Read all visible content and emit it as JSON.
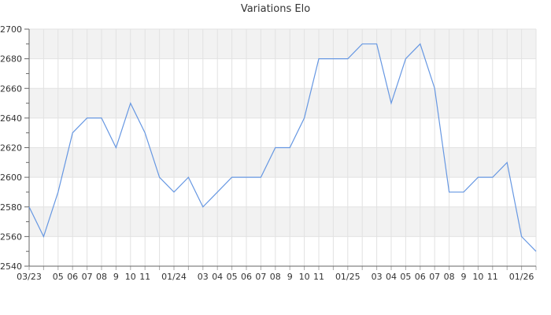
{
  "chart_data": {
    "type": "line",
    "title": "Variations Elo",
    "xlabel": "",
    "ylabel": "",
    "ylim": [
      2540,
      2700
    ],
    "y_tick_step": 20,
    "y_minor_tick_step": 10,
    "y_tick_labels": [
      "2540",
      "2560",
      "2580",
      "2600",
      "2620",
      "2640",
      "2660",
      "2680",
      "2700"
    ],
    "grid": true,
    "legend_position": "none",
    "colors": {
      "line": "#6697e2",
      "band": "#f2f2f2",
      "grid": "#e2e2e2",
      "axis": "#666666",
      "tick": "#aaaaaa",
      "text": "#333333",
      "title_text": "#333333"
    },
    "points": [
      {
        "x_label": "03/23",
        "value": 2580
      },
      {
        "x_label": "",
        "value": 2560
      },
      {
        "x_label": "05",
        "value": 2590
      },
      {
        "x_label": "06",
        "value": 2630
      },
      {
        "x_label": "07",
        "value": 2640
      },
      {
        "x_label": "08",
        "value": 2640
      },
      {
        "x_label": "9",
        "value": 2620
      },
      {
        "x_label": "10",
        "value": 2650
      },
      {
        "x_label": "11",
        "value": 2630
      },
      {
        "x_label": "",
        "value": 2600
      },
      {
        "x_label": "01/24",
        "value": 2590
      },
      {
        "x_label": "",
        "value": 2600
      },
      {
        "x_label": "03",
        "value": 2580
      },
      {
        "x_label": "04",
        "value": 2590
      },
      {
        "x_label": "05",
        "value": 2600
      },
      {
        "x_label": "06",
        "value": 2600
      },
      {
        "x_label": "07",
        "value": 2600
      },
      {
        "x_label": "08",
        "value": 2620
      },
      {
        "x_label": "9",
        "value": 2620
      },
      {
        "x_label": "10",
        "value": 2640
      },
      {
        "x_label": "11",
        "value": 2680
      },
      {
        "x_label": "",
        "value": 2680
      },
      {
        "x_label": "01/25",
        "value": 2680
      },
      {
        "x_label": "",
        "value": 2690
      },
      {
        "x_label": "03",
        "value": 2690
      },
      {
        "x_label": "04",
        "value": 2650
      },
      {
        "x_label": "05",
        "value": 2680
      },
      {
        "x_label": "06",
        "value": 2690
      },
      {
        "x_label": "07",
        "value": 2660
      },
      {
        "x_label": "08",
        "value": 2590
      },
      {
        "x_label": "9",
        "value": 2590
      },
      {
        "x_label": "10",
        "value": 2600
      },
      {
        "x_label": "11",
        "value": 2600
      },
      {
        "x_label": "",
        "value": 2610
      },
      {
        "x_label": "01/26",
        "value": 2560
      },
      {
        "x_label": "",
        "value": 2550
      }
    ]
  }
}
